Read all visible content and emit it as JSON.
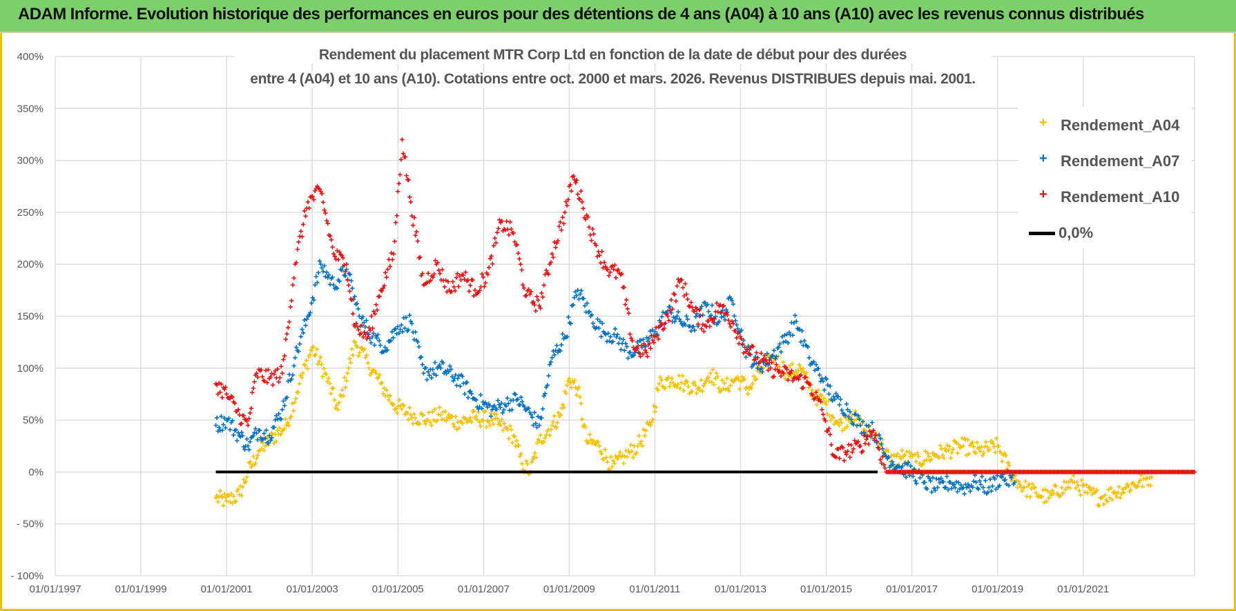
{
  "header": {
    "title": "ADAM Informe. Evolution historique des performances en euros pour des détentions de 4 ans (A04) à 10 ans (A10) avec les revenus connus distribués"
  },
  "chart_data": {
    "type": "scatter",
    "title_line1": "Rendement du placement MTR Corp Ltd en fonction de la date de début pour des durées",
    "title_line2": "entre 4 (A04) et 10 ans (A10). Cotations entre oct. 2000 et mars. 2026. Revenus DISTRIBUES depuis mai. 2001.",
    "ylim": [
      -100,
      400
    ],
    "y_ticks": [
      400,
      350,
      300,
      250,
      200,
      150,
      100,
      50,
      0,
      -50,
      -100
    ],
    "y_tick_labels": [
      "400%",
      "350%",
      "300%",
      "250%",
      "200%",
      "150%",
      "100%",
      "50%",
      "0%",
      "- 50%",
      "- 100%"
    ],
    "xlim": [
      1997.0,
      2023.6
    ],
    "x_ticks": [
      1997,
      1999,
      2001,
      2003,
      2005,
      2007,
      2009,
      2011,
      2013,
      2015,
      2017,
      2019,
      2021
    ],
    "x_tick_labels": [
      "01/01/1997",
      "01/01/1999",
      "01/01/2001",
      "01/01/2003",
      "01/01/2005",
      "01/01/2007",
      "01/01/2009",
      "01/01/2011",
      "01/01/2013",
      "01/01/2015",
      "01/01/2017",
      "01/01/2019",
      "01/01/2021"
    ],
    "grid": true,
    "legend_position": "top-right",
    "zero_line": {
      "name": "0,0%",
      "x_start": 2000.75,
      "x_end": 2023.6,
      "value": 0,
      "color": "#000000"
    },
    "series": [
      {
        "name": "Rendement_A04",
        "color": "#f5c000",
        "x": [
          2000.75,
          2001.0,
          2001.3,
          2001.5,
          2001.75,
          2002.0,
          2002.4,
          2002.7,
          2003.0,
          2003.3,
          2003.6,
          2003.85,
          2004.0,
          2004.3,
          2004.6,
          2004.9,
          2005.3,
          2005.7,
          2006.0,
          2006.4,
          2006.8,
          2007.2,
          2007.4,
          2007.7,
          2007.9,
          2008.1,
          2008.3,
          2008.6,
          2008.8,
          2009.0,
          2009.2,
          2009.4,
          2009.7,
          2010.0,
          2010.3,
          2010.6,
          2010.9,
          2011.1,
          2011.4,
          2011.7,
          2012.0,
          2012.3,
          2012.6,
          2012.9,
          2013.2,
          2013.5,
          2013.8,
          2014.1,
          2014.4,
          2014.7,
          2015.0,
          2015.3,
          2015.6,
          2015.9,
          2016.2,
          2016.5,
          2016.8,
          2017.1,
          2017.4,
          2017.8,
          2018.2,
          2018.6,
          2019.0,
          2019.3,
          2019.6,
          2019.9,
          2020.2,
          2020.5,
          2020.8,
          2021.1,
          2021.4,
          2021.7,
          2022.0,
          2022.3,
          2022.6
        ],
        "y": [
          -25,
          -28,
          -22,
          0,
          20,
          30,
          45,
          85,
          120,
          95,
          60,
          100,
          125,
          105,
          85,
          65,
          55,
          50,
          55,
          48,
          52,
          50,
          45,
          35,
          8,
          0,
          30,
          45,
          55,
          90,
          80,
          30,
          25,
          5,
          15,
          25,
          45,
          85,
          90,
          85,
          80,
          95,
          80,
          90,
          80,
          100,
          110,
          95,
          100,
          75,
          65,
          45,
          55,
          40,
          35,
          10,
          15,
          10,
          15,
          20,
          25,
          20,
          25,
          0,
          -15,
          -20,
          -25,
          -15,
          -10,
          -20,
          -25,
          -20,
          -15,
          -10,
          -5
        ]
      },
      {
        "name": "Rendement_A07",
        "color": "#0070c0",
        "x": [
          2000.75,
          2001.0,
          2001.3,
          2001.5,
          2001.75,
          2002.0,
          2002.3,
          2002.6,
          2002.9,
          2003.2,
          2003.5,
          2003.8,
          2004.1,
          2004.4,
          2004.7,
          2005.0,
          2005.3,
          2005.6,
          2006.0,
          2006.4,
          2006.8,
          2007.2,
          2007.5,
          2007.8,
          2008.0,
          2008.3,
          2008.6,
          2008.9,
          2009.2,
          2009.5,
          2009.8,
          2010.1,
          2010.4,
          2010.7,
          2011.0,
          2011.3,
          2011.6,
          2011.9,
          2012.2,
          2012.5,
          2012.8,
          2013.1,
          2013.4,
          2013.7,
          2014.0,
          2014.3,
          2014.6,
          2014.9,
          2015.2,
          2015.5,
          2015.8,
          2016.1,
          2016.4,
          2016.7,
          2017.0,
          2017.3,
          2017.6,
          2017.9,
          2018.2,
          2018.5,
          2018.8,
          2019.1,
          2019.4
        ],
        "y": [
          45,
          50,
          35,
          25,
          40,
          35,
          60,
          110,
          150,
          200,
          180,
          195,
          150,
          130,
          120,
          140,
          145,
          95,
          100,
          90,
          70,
          60,
          65,
          70,
          60,
          45,
          110,
          130,
          175,
          150,
          135,
          130,
          115,
          120,
          135,
          155,
          145,
          140,
          160,
          145,
          165,
          120,
          100,
          110,
          125,
          145,
          110,
          90,
          70,
          60,
          45,
          40,
          15,
          5,
          0,
          -10,
          -15,
          -10,
          -15,
          -10,
          -15,
          -5,
          -10
        ]
      },
      {
        "name": "Rendement_A10",
        "color": "#e81010",
        "x": [
          2000.75,
          2001.0,
          2001.3,
          2001.5,
          2001.7,
          2002.0,
          2002.3,
          2002.6,
          2002.9,
          2003.2,
          2003.5,
          2003.8,
          2004.0,
          2004.3,
          2004.6,
          2004.9,
          2005.1,
          2005.3,
          2005.6,
          2005.9,
          2006.2,
          2006.5,
          2006.8,
          2007.1,
          2007.4,
          2007.7,
          2008.0,
          2008.3,
          2008.6,
          2008.9,
          2009.1,
          2009.3,
          2009.6,
          2009.9,
          2010.2,
          2010.5,
          2010.8,
          2011.0,
          2011.3,
          2011.6,
          2011.9,
          2012.2,
          2012.5,
          2012.8,
          2013.1,
          2013.4,
          2013.7,
          2014.0,
          2014.3,
          2014.6,
          2014.9,
          2015.2,
          2015.5,
          2015.8,
          2016.1,
          2016.4,
          2017.0,
          2018.0,
          2019.0,
          2020.0,
          2021.0,
          2022.0,
          2023.0,
          2023.6
        ],
        "y": [
          85,
          75,
          55,
          45,
          95,
          90,
          95,
          200,
          260,
          270,
          210,
          200,
          140,
          130,
          175,
          210,
          320,
          260,
          180,
          200,
          175,
          190,
          175,
          190,
          240,
          230,
          170,
          160,
          210,
          250,
          285,
          260,
          220,
          195,
          190,
          120,
          115,
          130,
          150,
          185,
          155,
          140,
          160,
          145,
          120,
          110,
          100,
          95,
          90,
          85,
          60,
          15,
          20,
          25,
          40,
          0,
          0,
          0,
          0,
          0,
          0,
          0,
          0,
          0
        ]
      }
    ]
  }
}
